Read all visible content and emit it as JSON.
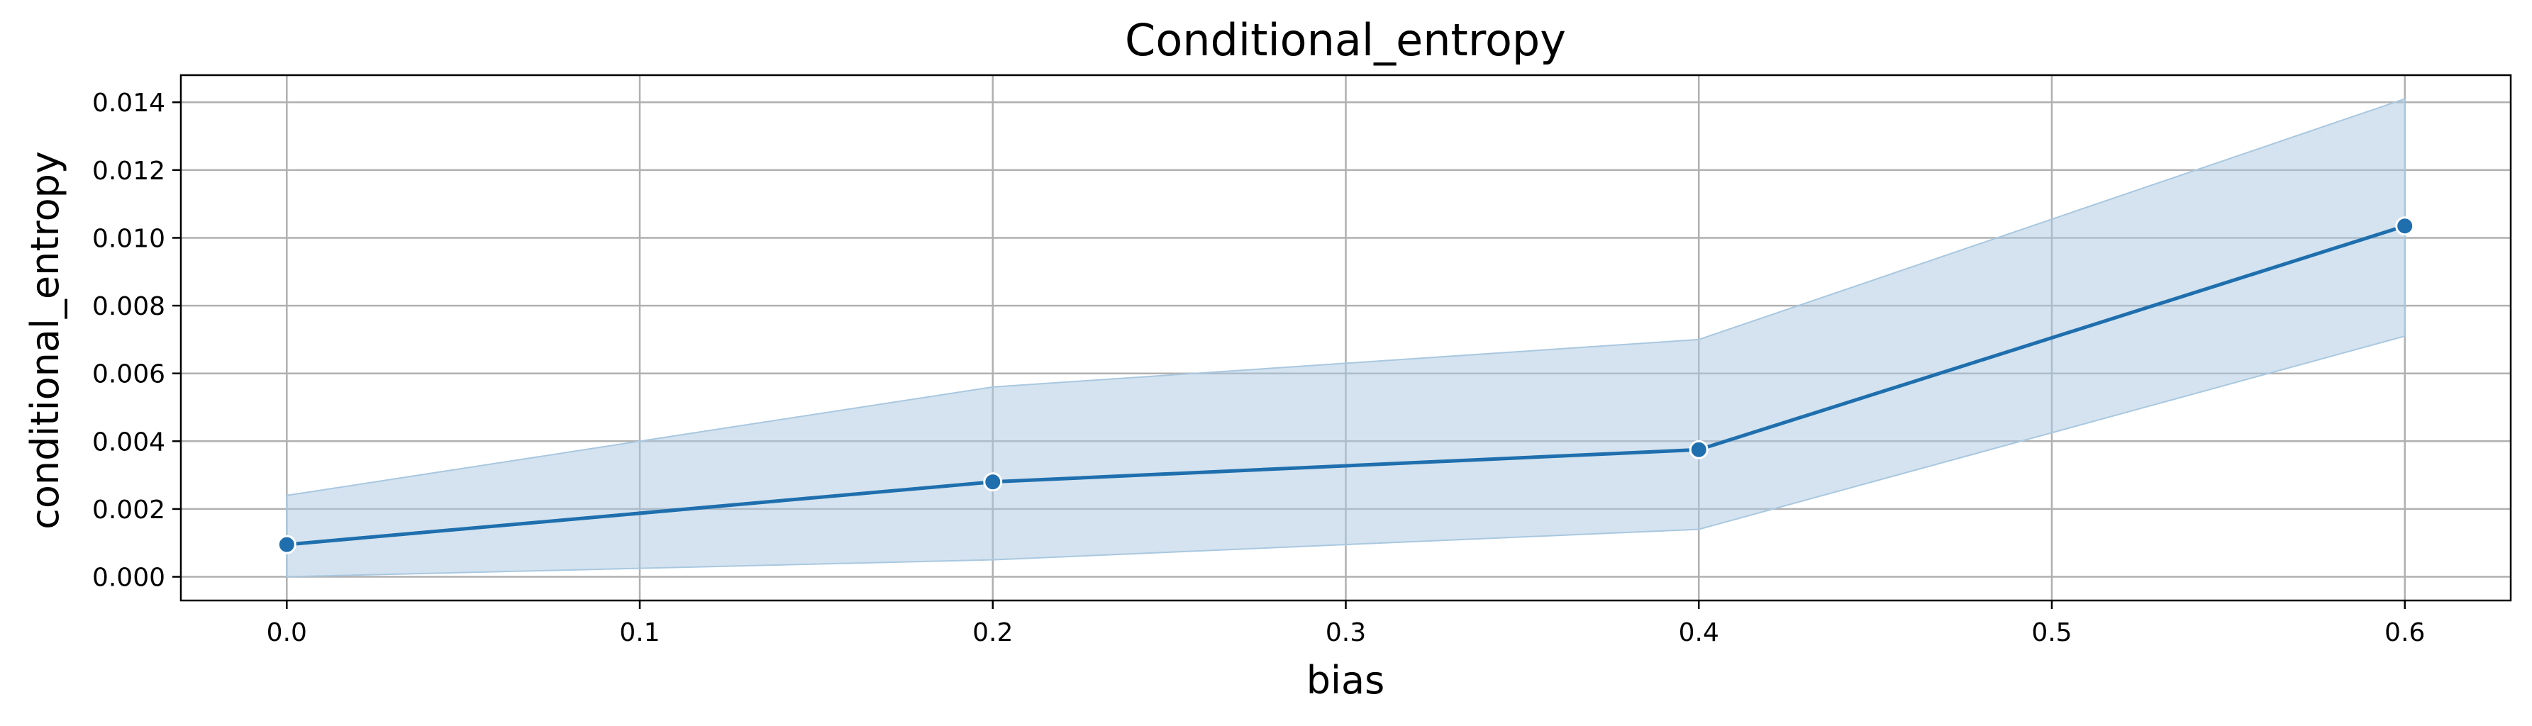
{
  "chart_data": {
    "type": "line",
    "title": "Conditional_entropy",
    "xlabel": "bias",
    "ylabel": "conditional_entropy",
    "xlim": [
      -0.03,
      0.63
    ],
    "ylim": [
      -0.0007,
      0.0148
    ],
    "x_ticks": [
      0.0,
      0.1,
      0.2,
      0.3,
      0.4,
      0.5,
      0.6
    ],
    "x_tick_labels": [
      "0.0",
      "0.1",
      "0.2",
      "0.3",
      "0.4",
      "0.5",
      "0.6"
    ],
    "y_ticks": [
      0.0,
      0.002,
      0.004,
      0.006,
      0.008,
      0.01,
      0.012,
      0.014
    ],
    "y_tick_labels": [
      "0.000",
      "0.002",
      "0.004",
      "0.006",
      "0.008",
      "0.010",
      "0.012",
      "0.014"
    ],
    "grid": true,
    "legend": "none",
    "series": [
      {
        "x": [
          0.0,
          0.2,
          0.4,
          0.6
        ],
        "y": [
          0.00095,
          0.0028,
          0.00375,
          0.01035
        ],
        "ci_lower": [
          0.0,
          0.0005,
          0.0014,
          0.0071
        ],
        "ci_upper": [
          0.0024,
          0.0056,
          0.007,
          0.0141
        ]
      }
    ],
    "colors": {
      "line": "#1f6fae",
      "band": "#a9c8e0",
      "grid": "#b0b0b0",
      "marker_edge": "#ffffff"
    }
  }
}
